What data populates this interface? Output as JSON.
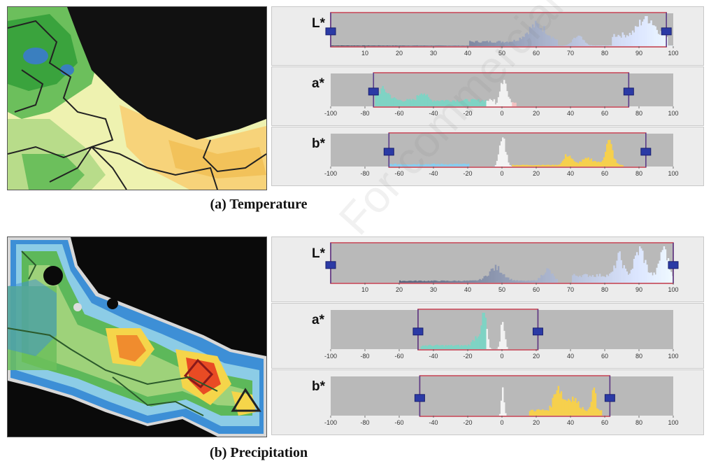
{
  "figure": {
    "panel_a": {
      "caption": "(a) Temperature",
      "histograms": [
        {
          "channel": "L*",
          "ticks": [
            "10",
            "20",
            "30",
            "40",
            "50",
            "60",
            "70",
            "80",
            "90",
            "100"
          ],
          "range": [
            0,
            100
          ],
          "selection": [
            0,
            98
          ],
          "marker": [
            0,
            98
          ]
        },
        {
          "channel": "a*",
          "ticks": [
            "-100",
            "-80",
            "-60",
            "-40",
            "-20",
            "0",
            "20",
            "40",
            "60",
            "80",
            "100"
          ],
          "range": [
            -100,
            100
          ],
          "selection": [
            -75,
            74
          ],
          "marker": [
            -75,
            74
          ]
        },
        {
          "channel": "b*",
          "ticks": [
            "-100",
            "-80",
            "-60",
            "-40",
            "-20",
            "0",
            "20",
            "40",
            "60",
            "80",
            "100"
          ],
          "range": [
            -100,
            100
          ],
          "selection": [
            -66,
            84
          ],
          "marker": [
            -66,
            84
          ]
        }
      ]
    },
    "panel_b": {
      "caption": "(b) Precipitation",
      "histograms": [
        {
          "channel": "L*",
          "ticks": [
            "10",
            "20",
            "30",
            "40",
            "50",
            "60",
            "70",
            "80",
            "90",
            "100"
          ],
          "range": [
            0,
            100
          ],
          "selection": [
            0,
            100
          ],
          "marker": [
            0,
            100
          ]
        },
        {
          "channel": "a*",
          "ticks": [
            "-100",
            "-80",
            "-60",
            "-40",
            "-20",
            "0",
            "20",
            "40",
            "60",
            "80",
            "100"
          ],
          "range": [
            -100,
            100
          ],
          "selection": [
            -49,
            21
          ],
          "marker": [
            -49,
            21
          ]
        },
        {
          "channel": "b*",
          "ticks": [
            "-100",
            "-80",
            "-60",
            "-40",
            "-20",
            "0",
            "20",
            "40",
            "60",
            "80",
            "100"
          ],
          "range": [
            -100,
            100
          ],
          "selection": [
            -48,
            63
          ],
          "marker": [
            -48,
            63
          ]
        }
      ]
    },
    "watermark": "For commercial use only"
  }
}
